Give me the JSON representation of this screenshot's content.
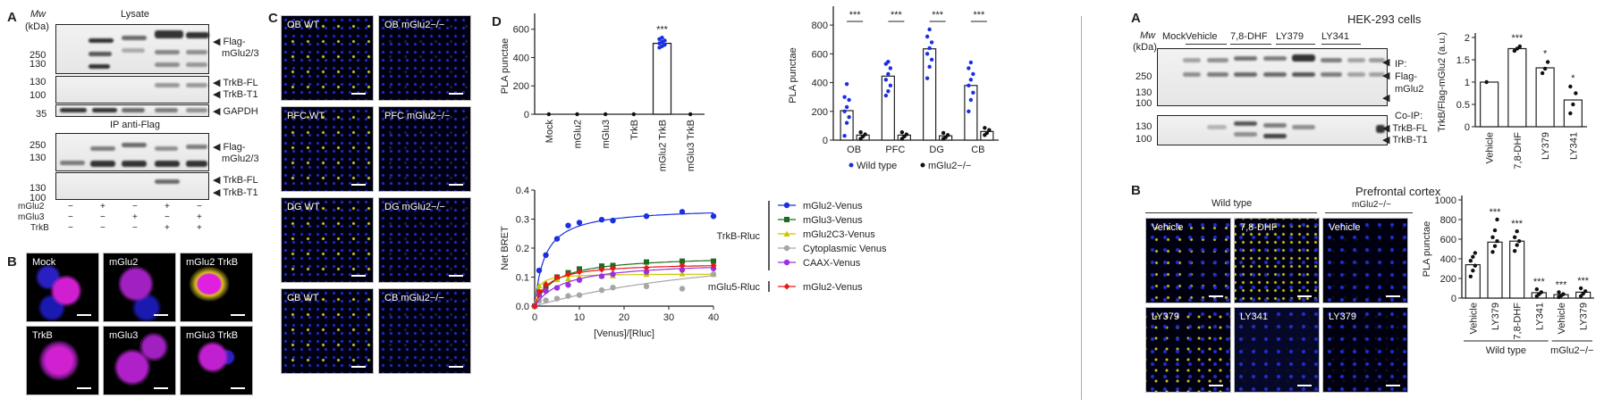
{
  "left_figure": {
    "panelA": {
      "label": "A",
      "mw_label": "Mw",
      "kda_label": "(kDa)",
      "lysate_title": "Lysate",
      "ip_title": "IP anti-Flag",
      "mw_ticks_top": [
        "250",
        "130"
      ],
      "mw_ticks_trkb": [
        "130",
        "100"
      ],
      "mw_ticks_gapdh": [
        "35"
      ],
      "mw_ticks_ip": [
        "250",
        "130"
      ],
      "mw_ticks_ip_trkb": [
        "130",
        "100"
      ],
      "right_labels": {
        "flag": "Flag-",
        "mglu23": "mGlu2/3",
        "trkb_fl": "TrkB-FL",
        "trkb_t1": "TrkB-T1",
        "gapdh": "GAPDH"
      },
      "conditions": [
        {
          "name": "mGlu2",
          "values": [
            "−",
            "+",
            "−",
            "+",
            "−"
          ]
        },
        {
          "name": "mGlu3",
          "values": [
            "−",
            "−",
            "+",
            "−",
            "+"
          ]
        },
        {
          "name": "TrkB",
          "values": [
            "−",
            "−",
            "−",
            "+",
            "+"
          ]
        }
      ]
    },
    "panelB": {
      "label": "B",
      "tiles": [
        "Mock",
        "mGlu2",
        "mGlu2 TrkB",
        "TrkB",
        "mGlu3",
        "mGlu3 TrkB"
      ]
    },
    "panelC": {
      "label": "C",
      "tiles": [
        "OB WT",
        "OB mGlu2−/−",
        "PFC WT",
        "PFC mGlu2−/−",
        "DG WT",
        "DG mGlu2−/−",
        "CB WT",
        "CB mGlu2−/−"
      ]
    },
    "panelD_label": "D"
  },
  "right_figure": {
    "panelA": {
      "label": "A",
      "title": "HEK-293 cells",
      "mw_label": "Mw",
      "kda_label": "(kDa)",
      "lane_groups": [
        "Mock",
        "Vehicle",
        "7,8-DHF",
        "LY379",
        "LY341"
      ],
      "mw_ticks_top": [
        "250",
        "130",
        "100"
      ],
      "mw_ticks_bottom": [
        "130",
        "100"
      ],
      "right_labels": {
        "ip": "IP:",
        "flag": "Flag-",
        "mglu2": "mGlu2",
        "coip": "Co-IP:",
        "trkb_fl": "TrkB-FL",
        "trkb_t1": "TrkB-T1"
      }
    },
    "panelB": {
      "label": "B",
      "title": "Prefrontal cortex",
      "group_wt": "Wild type",
      "group_ko": "mGlu2−/−",
      "tiles": [
        "Vehicle",
        "7,8-DHF",
        "Vehicle",
        "LY379",
        "LY341",
        "LY379"
      ]
    }
  },
  "chart_data": [
    {
      "id": "D1",
      "type": "bar",
      "title": "",
      "xlabel": "",
      "ylabel": "PLA punctae",
      "ylim": [
        0,
        680
      ],
      "yticks": [
        0,
        200,
        400,
        600
      ],
      "categories": [
        "Mock",
        "mGlu2",
        "mGlu3",
        "TrkB",
        "mGlu2 TrkB",
        "mGlu3 TrkB"
      ],
      "values": [
        0,
        0,
        0,
        0,
        500,
        0
      ],
      "points": [
        [
          0
        ],
        [
          0
        ],
        [
          0
        ],
        [
          0
        ],
        [
          470,
          480,
          490,
          500,
          510,
          520,
          530,
          540
        ],
        [
          0
        ]
      ],
      "significance": [
        "",
        "",
        "",
        "",
        "***",
        ""
      ]
    },
    {
      "id": "D2",
      "type": "bar",
      "ylabel": "PLA punctae",
      "ylim": [
        0,
        900
      ],
      "yticks": [
        0,
        200,
        400,
        600,
        800
      ],
      "categories": [
        "OB",
        "PFC",
        "DG",
        "CB"
      ],
      "series": [
        {
          "name": "Wild type",
          "color": "#1a2fe0",
          "values": [
            205,
            445,
            635,
            380
          ],
          "points": [
            [
              30,
              120,
              160,
              200,
              230,
              280,
              300,
              390
            ],
            [
              310,
              340,
              380,
              420,
              460,
              500,
              530,
              545
            ],
            [
              430,
              510,
              560,
              600,
              640,
              680,
              720,
              770
            ],
            [
              200,
              280,
              330,
              380,
              420,
              460,
              500,
              540
            ]
          ]
        },
        {
          "name": "mGlu2−/−",
          "color": "#111111",
          "values": [
            35,
            35,
            30,
            60
          ],
          "points": [
            [
              10,
              25,
              40,
              55
            ],
            [
              10,
              25,
              40,
              55
            ],
            [
              10,
              20,
              35,
              50
            ],
            [
              35,
              50,
              70,
              85
            ]
          ]
        }
      ],
      "significance": [
        "***",
        "***",
        "***",
        "***"
      ],
      "legend": "bottom"
    },
    {
      "id": "D3",
      "type": "line",
      "xlabel": "[Venus]/[Rluc]",
      "ylabel": "Net BRET",
      "xlim": [
        0,
        40
      ],
      "ylim": [
        0,
        0.4
      ],
      "xticks": [
        0,
        10,
        20,
        30,
        40
      ],
      "yticks": [
        0.0,
        0.1,
        0.2,
        0.3,
        0.4
      ],
      "legend_groups": [
        {
          "name": "TrkB-Rluc",
          "entries": [
            "mGlu2-Venus",
            "mGlu3-Venus",
            "mGlu2C3-Venus",
            "Cytoplasmic Venus",
            "CAAX-Venus"
          ]
        },
        {
          "name": "mGlu5-Rluc",
          "entries": [
            "mGlu2-Venus"
          ]
        }
      ],
      "series": [
        {
          "name": "mGlu2-Venus (TrkB-Rluc)",
          "color": "#1a2fe0",
          "marker": "circle",
          "x": [
            0,
            1,
            2.5,
            5,
            7.5,
            10,
            15,
            17.5,
            25,
            33,
            40
          ],
          "y": [
            0,
            0.123,
            0.176,
            0.232,
            0.278,
            0.288,
            0.298,
            0.295,
            0.31,
            0.325,
            0.31
          ],
          "bmax": 0.34,
          "kd": 2.3
        },
        {
          "name": "mGlu3-Venus (TrkB-Rluc)",
          "color": "#1e6b1e",
          "marker": "square",
          "x": [
            0,
            1,
            2.5,
            5,
            7.5,
            10,
            15,
            17.5,
            25,
            33,
            40
          ],
          "y": [
            0,
            0.048,
            0.068,
            0.1,
            0.115,
            0.128,
            0.138,
            0.14,
            0.152,
            0.155,
            0.155
          ],
          "bmax": 0.175,
          "kd": 4.5
        },
        {
          "name": "mGlu2C3-Venus (TrkB-Rluc)",
          "color": "#c8c800",
          "marker": "triangle",
          "x": [
            0,
            1,
            2.5,
            5,
            7.5,
            10,
            15,
            17.5,
            25,
            33,
            40
          ],
          "y": [
            0,
            0.07,
            0.08,
            0.092,
            0.095,
            0.1,
            0.105,
            0.105,
            0.11,
            0.112,
            0.11
          ],
          "bmax": 0.112,
          "kd": 0.7
        },
        {
          "name": "Cytoplasmic Venus (TrkB-Rluc)",
          "color": "#a6a6a6",
          "marker": "circle",
          "x": [
            0,
            1,
            2.5,
            5,
            7.5,
            10,
            15,
            17.5,
            25,
            33,
            40
          ],
          "y": [
            0,
            0.018,
            0.02,
            0.026,
            0.035,
            0.038,
            0.055,
            0.064,
            0.068,
            0.06,
            0.11
          ],
          "bmax": 0.25,
          "kd": 55
        },
        {
          "name": "CAAX-Venus (TrkB-Rluc)",
          "color": "#9b30e0",
          "marker": "circle",
          "x": [
            0,
            1,
            2.5,
            5,
            7.5,
            10,
            15,
            17.5,
            25,
            33,
            40
          ],
          "y": [
            0,
            0.038,
            0.052,
            0.063,
            0.073,
            0.09,
            0.103,
            0.11,
            0.118,
            0.125,
            0.13
          ],
          "bmax": 0.155,
          "kd": 6.5
        },
        {
          "name": "mGlu2-Venus (mGlu5-Rluc)",
          "color": "#e81818",
          "marker": "diamond",
          "x": [
            0,
            1,
            2.5,
            5,
            7.5,
            10,
            15,
            17.5,
            25,
            33,
            40
          ],
          "y": [
            0,
            0.05,
            0.075,
            0.1,
            0.11,
            0.118,
            0.126,
            0.13,
            0.132,
            0.14,
            0.14
          ],
          "bmax": 0.15,
          "kd": 3.0
        }
      ]
    },
    {
      "id": "RA",
      "type": "bar",
      "ylabel": "TrkB/Flag-mGlu2 (a.u.)",
      "ylim": [
        0,
        2
      ],
      "yticks": [
        "0",
        "0.5",
        "1",
        "1.5",
        "2"
      ],
      "categories": [
        "Vehicle",
        "7,8-DHF",
        "LY379",
        "LY341"
      ],
      "values": [
        1.0,
        1.75,
        1.32,
        0.6
      ],
      "points": [
        [
          1.0
        ],
        [
          1.7,
          1.75,
          1.8
        ],
        [
          1.2,
          1.3,
          1.45
        ],
        [
          0.3,
          0.5,
          0.75,
          0.9
        ]
      ],
      "significance": [
        "",
        "***",
        "*",
        "*"
      ]
    },
    {
      "id": "RB",
      "type": "bar",
      "ylabel": "PLA punctae",
      "ylim": [
        0,
        1000
      ],
      "yticks": [
        0,
        200,
        400,
        600,
        800,
        1000
      ],
      "categories": [
        "Vehicle",
        "LY379",
        "7,8-DHF",
        "LY341",
        "Vehicle",
        "LY379"
      ],
      "group_labels": [
        {
          "label": "Wild type",
          "span": [
            0,
            3
          ]
        },
        {
          "label": "mGlu2−/−",
          "span": [
            4,
            5
          ]
        }
      ],
      "values": [
        340,
        570,
        580,
        55,
        35,
        60
      ],
      "points": [
        [
          220,
          280,
          330,
          380,
          420,
          460
        ],
        [
          470,
          530,
          580,
          620,
          690,
          800
        ],
        [
          480,
          540,
          580,
          620,
          680
        ],
        [
          20,
          40,
          60,
          90
        ],
        [
          10,
          25,
          40,
          60
        ],
        [
          20,
          45,
          70,
          100
        ]
      ],
      "significance": [
        "",
        "***",
        "***",
        "***",
        "***",
        "***"
      ]
    }
  ]
}
